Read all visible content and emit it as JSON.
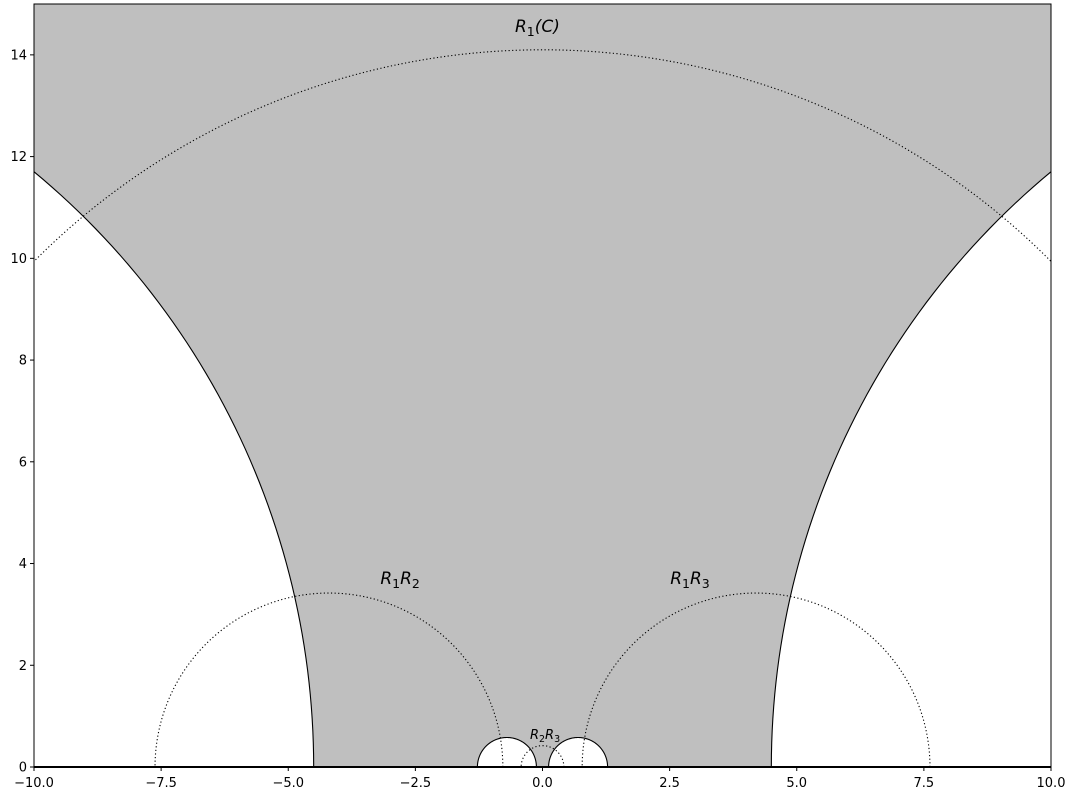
{
  "chart_data": {
    "type": "diagram",
    "xlim": [
      -10.0,
      10.0
    ],
    "ylim": [
      0,
      15
    ],
    "xticks": [
      {
        "value": -10.0,
        "label": "−10.0"
      },
      {
        "value": -7.5,
        "label": "−7.5"
      },
      {
        "value": -5.0,
        "label": "−5.0"
      },
      {
        "value": -2.5,
        "label": "−2.5"
      },
      {
        "value": 0.0,
        "label": "0.0"
      },
      {
        "value": 2.5,
        "label": "2.5"
      },
      {
        "value": 5.0,
        "label": "5.0"
      },
      {
        "value": 7.5,
        "label": "7.5"
      },
      {
        "value": 10.0,
        "label": "10.0"
      }
    ],
    "yticks": [
      {
        "value": 0,
        "label": "0"
      },
      {
        "value": 2,
        "label": "2"
      },
      {
        "value": 4,
        "label": "4"
      },
      {
        "value": 6,
        "label": "6"
      },
      {
        "value": 8,
        "label": "8"
      },
      {
        "value": 10,
        "label": "10"
      },
      {
        "value": 12,
        "label": "12"
      },
      {
        "value": 14,
        "label": "14"
      }
    ],
    "fill_color": "#bfbfbf",
    "solid_arcs": [
      {
        "cx": -19.7,
        "r": 15.2
      },
      {
        "cx": 19.7,
        "r": 15.2
      },
      {
        "cx": -0.7,
        "r": 0.58
      },
      {
        "cx": 0.7,
        "r": 0.58
      }
    ],
    "dotted_arcs": [
      {
        "cx": 0.0,
        "r": 14.1
      },
      {
        "cx": -4.2,
        "r": 3.42
      },
      {
        "cx": 4.2,
        "r": 3.42
      },
      {
        "cx": 0.0,
        "r": 0.42
      }
    ],
    "annotations": [
      {
        "id": "r1c",
        "base": "R",
        "sub": "1",
        "tail": "(C)",
        "x": -0.1,
        "y": 14.45
      },
      {
        "id": "r1r2",
        "base": "R",
        "sub": "1",
        "base2": "R",
        "sub2": "2",
        "x": -2.8,
        "y": 3.6
      },
      {
        "id": "r1r3",
        "base": "R",
        "sub": "1",
        "base2": "R",
        "sub2": "3",
        "x": 2.9,
        "y": 3.6
      },
      {
        "id": "r2r3",
        "base": "R",
        "sub": "2",
        "base2": "R",
        "sub2": "3",
        "x": 0.05,
        "y": 0.55
      }
    ]
  }
}
